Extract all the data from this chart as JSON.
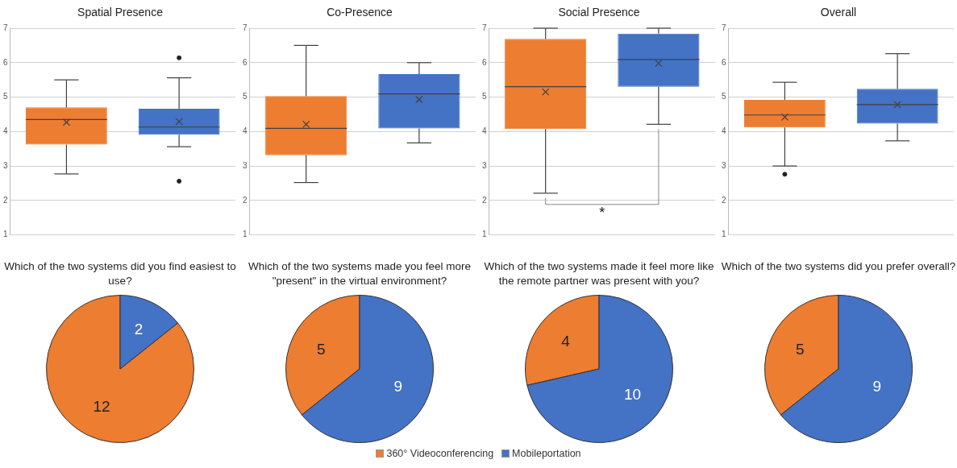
{
  "chart_data": [
    {
      "type": "box",
      "title": "Spatial Presence",
      "categories": [
        null,
        null
      ],
      "colors": [
        "#ed7d31",
        "#4472c4"
      ],
      "ylim": [
        1,
        7
      ],
      "yticks": [
        1,
        2,
        3,
        4,
        5,
        6,
        7
      ],
      "grid": "y",
      "boxes": [
        {
          "low": 2.77,
          "q1": 3.62,
          "median": 4.35,
          "q3": 4.7,
          "high": 5.5,
          "mean": 4.27
        },
        {
          "low": 3.56,
          "q1": 3.91,
          "median": 4.13,
          "q3": 4.66,
          "high": 5.56,
          "mean": 4.29,
          "outliers": [
            6.14,
            2.56
          ]
        }
      ]
    },
    {
      "type": "box",
      "title": "Co-Presence",
      "categories": [
        null,
        null
      ],
      "colors": [
        "#ed7d31",
        "#4472c4"
      ],
      "ylim": [
        1,
        7
      ],
      "yticks": [
        1,
        2,
        3,
        4,
        5,
        6,
        7
      ],
      "grid": "y",
      "boxes": [
        {
          "low": 2.52,
          "q1": 3.31,
          "median": 4.09,
          "q3": 5.03,
          "high": 6.5,
          "mean": 4.21
        },
        {
          "low": 3.67,
          "q1": 4.09,
          "median": 5.09,
          "q3": 5.67,
          "high": 6.0,
          "mean": 4.93
        }
      ]
    },
    {
      "type": "box",
      "title": "Social Presence",
      "categories": [
        null,
        null
      ],
      "colors": [
        "#ed7d31",
        "#4472c4"
      ],
      "ylim": [
        1,
        7
      ],
      "yticks": [
        1,
        2,
        3,
        4,
        5,
        6,
        7
      ],
      "grid": "y",
      "annotations": [
        "*"
      ],
      "boxes": [
        {
          "low": 2.21,
          "q1": 4.07,
          "median": 5.3,
          "q3": 6.69,
          "high": 7.0,
          "mean": 5.15
        },
        {
          "low": 4.21,
          "q1": 5.3,
          "median": 6.09,
          "q3": 6.84,
          "high": 7.0,
          "mean": 5.98
        }
      ]
    },
    {
      "type": "box",
      "title": "Overall",
      "categories": [
        null,
        null
      ],
      "colors": [
        "#ed7d31",
        "#4472c4"
      ],
      "ylim": [
        1,
        7
      ],
      "yticks": [
        1,
        2,
        3,
        4,
        5,
        6,
        7
      ],
      "grid": "y",
      "boxes": [
        {
          "low": 3.0,
          "q1": 4.12,
          "median": 4.48,
          "q3": 4.92,
          "high": 5.43,
          "mean": 4.42,
          "outliers": [
            2.76
          ]
        },
        {
          "low": 3.73,
          "q1": 4.23,
          "median": 4.78,
          "q3": 5.24,
          "high": 6.26,
          "mean": 4.78
        }
      ]
    },
    {
      "type": "pie",
      "title": "Which of the two systems did you find easiest to use?",
      "categories": [
        "360° Videoconferencing",
        "Mobileportation"
      ],
      "values": [
        12,
        2
      ],
      "colors": [
        "#ed7d31",
        "#4472c4"
      ],
      "data_labels": true,
      "legend": "bottom"
    },
    {
      "type": "pie",
      "title": "Which of the two systems made you feel more \"present\" in the virtual environment?",
      "categories": [
        null,
        null
      ],
      "values": [
        5,
        9
      ],
      "colors": [
        "#ed7d31",
        "#4472c4"
      ],
      "data_labels": true
    },
    {
      "type": "pie",
      "title": "Which of the two systems made it feel more like the remote partner was present with you?",
      "categories": [
        null,
        null
      ],
      "values": [
        4,
        10
      ],
      "colors": [
        "#ed7d31",
        "#4472c4"
      ],
      "data_labels": true
    },
    {
      "type": "pie",
      "title": "Which of the two systems did you prefer overall?",
      "categories": [
        null,
        null
      ],
      "values": [
        5,
        9
      ],
      "colors": [
        "#ed7d31",
        "#4472c4"
      ],
      "data_labels": true
    }
  ]
}
